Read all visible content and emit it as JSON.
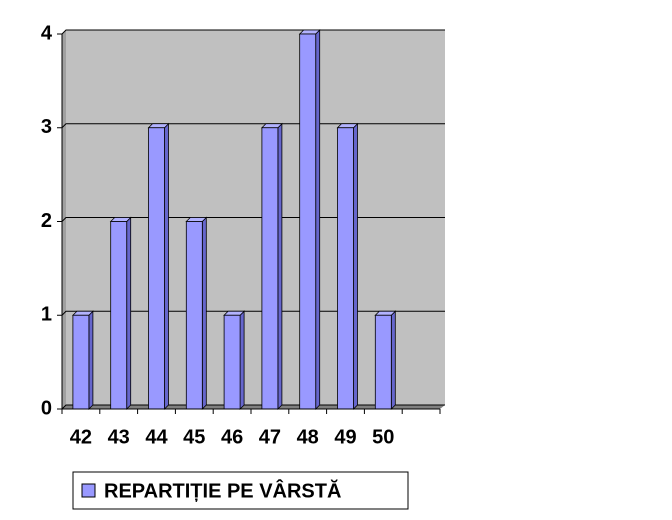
{
  "chart_data": {
    "type": "bar3d",
    "categories": [
      "42",
      "43",
      "44",
      "45",
      "46",
      "47",
      "48",
      "49",
      "50",
      null
    ],
    "series": [
      {
        "name": "REPARTIȚIE PE VÂRSTĂ",
        "color": "#9999ff",
        "values": [
          1,
          2,
          3,
          2,
          1,
          3,
          4,
          3,
          1,
          null
        ]
      }
    ],
    "ylim": [
      0,
      4
    ],
    "yticks": [
      0,
      1,
      2,
      3,
      4
    ],
    "grid": true,
    "legend": "bottom"
  }
}
